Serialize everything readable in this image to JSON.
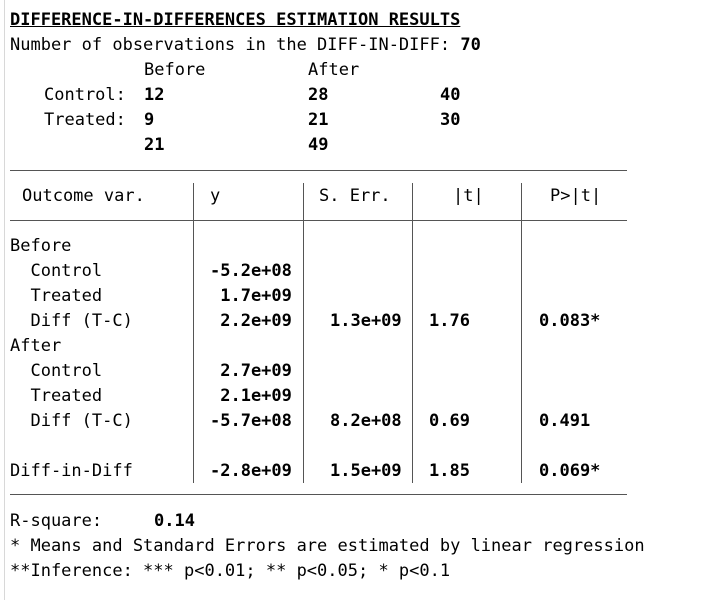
{
  "title": "DIFFERENCE-IN-DIFFERENCES ESTIMATION RESULTS",
  "nobs_label": "Number of observations in the DIFF-IN-DIFF:",
  "nobs_value": "70",
  "counts": {
    "col_before": "Before",
    "col_after": "After",
    "control_label": "Control:",
    "control_before": "12",
    "control_after": "28",
    "control_total": "40",
    "treated_label": "Treated:",
    "treated_before": "9",
    "treated_after": "21",
    "treated_total": "30",
    "total_before": "21",
    "total_after": "49"
  },
  "table": {
    "headers": [
      "Outcome var.",
      "y",
      "S. Err.",
      "|t|",
      "P>|t|"
    ],
    "rows": [
      {
        "label": "Before",
        "y": "",
        "se": "",
        "t": "",
        "p": ""
      },
      {
        "label": "  Control",
        "y": "-5.2e+08",
        "se": "",
        "t": "",
        "p": ""
      },
      {
        "label": "  Treated",
        "y": " 1.7e+09",
        "se": "",
        "t": "",
        "p": ""
      },
      {
        "label": "  Diff (T-C)",
        "y": " 2.2e+09",
        "se": "1.3e+09",
        "t": "1.76",
        "p": "0.083*"
      },
      {
        "label": "After",
        "y": "",
        "se": "",
        "t": "",
        "p": ""
      },
      {
        "label": "  Control",
        "y": " 2.7e+09",
        "se": "",
        "t": "",
        "p": ""
      },
      {
        "label": "  Treated",
        "y": " 2.1e+09",
        "se": "",
        "t": "",
        "p": ""
      },
      {
        "label": "  Diff (T-C)",
        "y": "-5.7e+08",
        "se": "8.2e+08",
        "t": "0.69",
        "p": "0.491"
      },
      {
        "label": "",
        "y": "",
        "se": "",
        "t": "",
        "p": ""
      },
      {
        "label": "Diff-in-Diff",
        "y": "-2.8e+09",
        "se": "1.5e+09",
        "t": "1.85",
        "p": "0.069*"
      }
    ]
  },
  "footer": {
    "rsq_label": "R-square:",
    "rsq_value": "0.14",
    "note1": "* Means and Standard Errors are estimated by linear regression",
    "note2": "**Inference: *** p<0.01; ** p<0.05; * p<0.1"
  }
}
